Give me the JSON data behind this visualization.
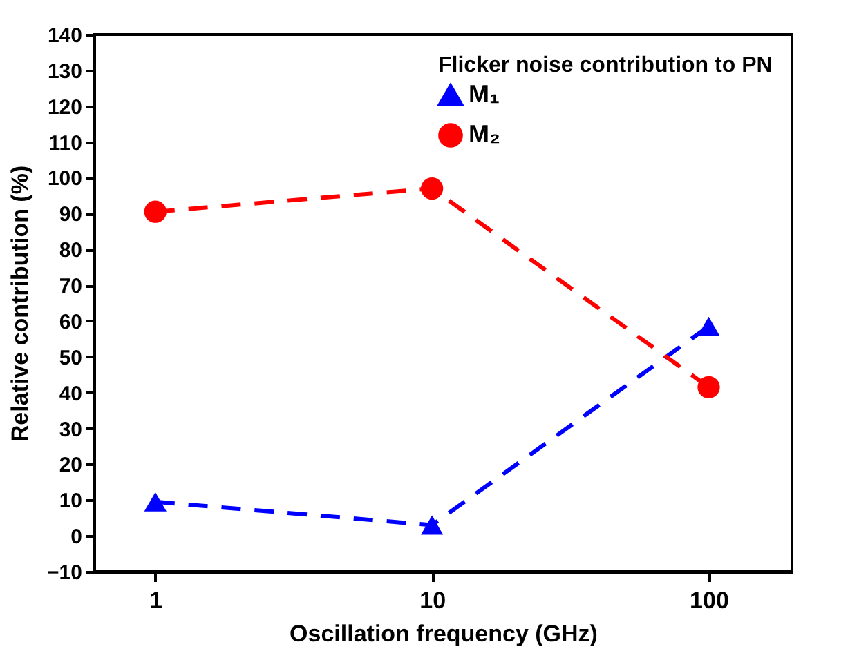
{
  "chart_data": {
    "type": "line",
    "xlabel": "Oscillation frequency (GHz)",
    "ylabel": "Relative contribution (%)",
    "legend_title": "Flicker noise contribution to PN",
    "legend": "top right",
    "log": "x",
    "line_style": "dashed",
    "grid": false,
    "x": [
      1,
      10,
      100
    ],
    "xlim": [
      0.6,
      200
    ],
    "xticks": [
      1,
      10,
      100
    ],
    "ylim": [
      -10,
      140
    ],
    "yticks": [
      -10,
      0,
      10,
      20,
      30,
      40,
      50,
      60,
      70,
      80,
      90,
      100,
      110,
      120,
      130,
      140
    ],
    "series": [
      {
        "name": "M₁",
        "color": "#0000ff",
        "marker": "triangle",
        "values": [
          9.5,
          3,
          58.5
        ]
      },
      {
        "name": "M₂",
        "color": "#ff0000",
        "marker": "circle",
        "values": [
          90.5,
          97,
          41.5
        ]
      }
    ]
  }
}
